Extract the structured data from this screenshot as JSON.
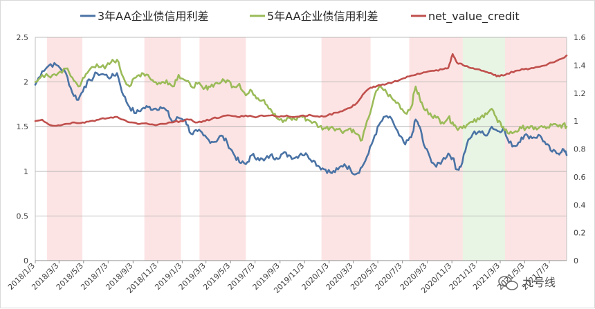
{
  "chart_data": {
    "type": "line",
    "title": "",
    "legend_position": "top",
    "x_ticks": [
      "2018/1/3",
      "2018/3/3",
      "2018/5/3",
      "2018/7/3",
      "2018/9/3",
      "2018/11/3",
      "2019/1/3",
      "2019/3/3",
      "2019/5/3",
      "2019/7/3",
      "2019/9/3",
      "2019/11/3",
      "2020/1/3",
      "2020/3/3",
      "2020/5/3",
      "2020/7/3",
      "2020/9/3",
      "2020/11/3",
      "2021/1/3",
      "2021/3/3",
      "2021/5/3",
      "2021/7/3"
    ],
    "x_range": [
      "2018/1/3",
      "2021/8/15"
    ],
    "y_left": {
      "range": [
        0,
        2.5
      ],
      "ticks": [
        "0",
        "0.5",
        "1",
        "1.5",
        "2",
        "2.5"
      ]
    },
    "y_right": {
      "range": [
        0,
        1.6
      ],
      "ticks": [
        "0",
        "0.2",
        "0.4",
        "0.6",
        "0.8",
        "1",
        "1.2",
        "1.4",
        "1.6"
      ]
    },
    "gridlines": "horizontal",
    "series": [
      {
        "name": "3年AA企业债信用利差",
        "color": "#4a73a5",
        "axis": "left",
        "points": [
          [
            "2018/1/3",
            1.97
          ],
          [
            "2018/1/20",
            2.12
          ],
          [
            "2018/2/10",
            2.2
          ],
          [
            "2018/3/1",
            2.18
          ],
          [
            "2018/3/20",
            2.1
          ],
          [
            "2018/4/5",
            1.88
          ],
          [
            "2018/4/20",
            1.8
          ],
          [
            "2018/5/5",
            1.95
          ],
          [
            "2018/5/20",
            2.02
          ],
          [
            "2018/6/5",
            2.1
          ],
          [
            "2018/6/25",
            2.08
          ],
          [
            "2018/7/10",
            2.05
          ],
          [
            "2018/7/25",
            2.1
          ],
          [
            "2018/8/10",
            1.85
          ],
          [
            "2018/8/25",
            1.72
          ],
          [
            "2018/9/10",
            1.65
          ],
          [
            "2018/9/25",
            1.7
          ],
          [
            "2018/10/10",
            1.72
          ],
          [
            "2018/10/25",
            1.7
          ],
          [
            "2018/11/10",
            1.72
          ],
          [
            "2018/11/25",
            1.68
          ],
          [
            "2018/12/10",
            1.55
          ],
          [
            "2018/12/25",
            1.6
          ],
          [
            "2019/1/10",
            1.58
          ],
          [
            "2019/1/25",
            1.42
          ],
          [
            "2019/2/10",
            1.45
          ],
          [
            "2019/2/25",
            1.4
          ],
          [
            "2019/3/10",
            1.35
          ],
          [
            "2019/3/25",
            1.33
          ],
          [
            "2019/4/10",
            1.4
          ],
          [
            "2019/4/25",
            1.32
          ],
          [
            "2019/5/10",
            1.2
          ],
          [
            "2019/5/25",
            1.1
          ],
          [
            "2019/6/10",
            1.08
          ],
          [
            "2019/6/25",
            1.18
          ],
          [
            "2019/7/10",
            1.15
          ],
          [
            "2019/7/25",
            1.12
          ],
          [
            "2019/8/10",
            1.18
          ],
          [
            "2019/8/25",
            1.15
          ],
          [
            "2019/9/10",
            1.2
          ],
          [
            "2019/9/25",
            1.18
          ],
          [
            "2019/10/10",
            1.15
          ],
          [
            "2019/10/25",
            1.2
          ],
          [
            "2019/11/10",
            1.18
          ],
          [
            "2019/11/25",
            1.12
          ],
          [
            "2019/12/10",
            1.05
          ],
          [
            "2019/12/25",
            1.02
          ],
          [
            "2020/1/10",
            0.98
          ],
          [
            "2020/1/25",
            1.02
          ],
          [
            "2020/2/10",
            1.08
          ],
          [
            "2020/2/25",
            1.02
          ],
          [
            "2020/3/10",
            0.97
          ],
          [
            "2020/3/25",
            1.05
          ],
          [
            "2020/4/10",
            1.2
          ],
          [
            "2020/4/25",
            1.4
          ],
          [
            "2020/5/10",
            1.55
          ],
          [
            "2020/5/25",
            1.62
          ],
          [
            "2020/6/10",
            1.55
          ],
          [
            "2020/6/25",
            1.4
          ],
          [
            "2020/7/10",
            1.3
          ],
          [
            "2020/7/25",
            1.38
          ],
          [
            "2020/8/5",
            1.58
          ],
          [
            "2020/8/15",
            1.5
          ],
          [
            "2020/8/25",
            1.3
          ],
          [
            "2020/9/10",
            1.15
          ],
          [
            "2020/9/25",
            1.05
          ],
          [
            "2020/10/10",
            1.12
          ],
          [
            "2020/10/25",
            1.2
          ],
          [
            "2020/11/5",
            1.15
          ],
          [
            "2020/11/15",
            1.02
          ],
          [
            "2020/11/25",
            1.05
          ],
          [
            "2020/12/10",
            1.3
          ],
          [
            "2020/12/25",
            1.42
          ],
          [
            "2021/1/10",
            1.45
          ],
          [
            "2021/1/25",
            1.4
          ],
          [
            "2021/2/10",
            1.5
          ],
          [
            "2021/2/25",
            1.45
          ],
          [
            "2021/3/10",
            1.48
          ],
          [
            "2021/3/25",
            1.32
          ],
          [
            "2021/4/10",
            1.28
          ],
          [
            "2021/4/25",
            1.38
          ],
          [
            "2021/5/10",
            1.4
          ],
          [
            "2021/5/25",
            1.38
          ],
          [
            "2021/6/10",
            1.4
          ],
          [
            "2021/6/25",
            1.3
          ],
          [
            "2021/7/10",
            1.22
          ],
          [
            "2021/7/25",
            1.2
          ],
          [
            "2021/8/5",
            1.25
          ],
          [
            "2021/8/15",
            1.18
          ]
        ]
      },
      {
        "name": "5年AA企业债信用利差",
        "color": "#9bbb59",
        "axis": "left",
        "points": [
          [
            "2018/1/3",
            2.0
          ],
          [
            "2018/1/20",
            2.08
          ],
          [
            "2018/2/10",
            2.05
          ],
          [
            "2018/3/1",
            2.1
          ],
          [
            "2018/3/20",
            2.15
          ],
          [
            "2018/4/5",
            2.05
          ],
          [
            "2018/4/20",
            1.95
          ],
          [
            "2018/5/5",
            2.05
          ],
          [
            "2018/5/20",
            2.15
          ],
          [
            "2018/6/5",
            2.2
          ],
          [
            "2018/6/25",
            2.15
          ],
          [
            "2018/7/10",
            2.22
          ],
          [
            "2018/7/25",
            2.25
          ],
          [
            "2018/8/10",
            2.05
          ],
          [
            "2018/8/25",
            1.95
          ],
          [
            "2018/9/10",
            2.05
          ],
          [
            "2018/9/25",
            2.1
          ],
          [
            "2018/10/10",
            2.08
          ],
          [
            "2018/10/25",
            2.0
          ],
          [
            "2018/11/10",
            1.98
          ],
          [
            "2018/11/25",
            2.02
          ],
          [
            "2018/12/10",
            1.95
          ],
          [
            "2018/12/25",
            2.08
          ],
          [
            "2019/1/10",
            2.02
          ],
          [
            "2019/1/25",
            1.95
          ],
          [
            "2019/2/10",
            1.98
          ],
          [
            "2019/2/25",
            1.92
          ],
          [
            "2019/3/10",
            1.95
          ],
          [
            "2019/3/25",
            1.98
          ],
          [
            "2019/4/10",
            2.0
          ],
          [
            "2019/4/25",
            2.02
          ],
          [
            "2019/5/10",
            1.95
          ],
          [
            "2019/5/25",
            1.98
          ],
          [
            "2019/6/10",
            1.85
          ],
          [
            "2019/6/25",
            1.9
          ],
          [
            "2019/7/10",
            1.82
          ],
          [
            "2019/7/25",
            1.8
          ],
          [
            "2019/8/10",
            1.7
          ],
          [
            "2019/8/25",
            1.6
          ],
          [
            "2019/9/10",
            1.55
          ],
          [
            "2019/9/25",
            1.6
          ],
          [
            "2019/10/10",
            1.58
          ],
          [
            "2019/10/25",
            1.62
          ],
          [
            "2019/11/10",
            1.58
          ],
          [
            "2019/11/25",
            1.55
          ],
          [
            "2019/12/10",
            1.5
          ],
          [
            "2019/12/25",
            1.48
          ],
          [
            "2020/1/10",
            1.5
          ],
          [
            "2020/1/25",
            1.47
          ],
          [
            "2020/2/10",
            1.45
          ],
          [
            "2020/2/25",
            1.48
          ],
          [
            "2020/3/10",
            1.42
          ],
          [
            "2020/3/25",
            1.35
          ],
          [
            "2020/4/10",
            1.6
          ],
          [
            "2020/4/25",
            1.85
          ],
          [
            "2020/5/10",
            1.95
          ],
          [
            "2020/5/25",
            1.88
          ],
          [
            "2020/6/10",
            1.8
          ],
          [
            "2020/6/25",
            1.75
          ],
          [
            "2020/7/10",
            1.65
          ],
          [
            "2020/7/25",
            1.72
          ],
          [
            "2020/8/5",
            1.95
          ],
          [
            "2020/8/15",
            1.82
          ],
          [
            "2020/8/25",
            1.7
          ],
          [
            "2020/9/10",
            1.65
          ],
          [
            "2020/9/25",
            1.6
          ],
          [
            "2020/10/10",
            1.55
          ],
          [
            "2020/10/25",
            1.6
          ],
          [
            "2020/11/5",
            1.55
          ],
          [
            "2020/11/15",
            1.48
          ],
          [
            "2020/11/25",
            1.5
          ],
          [
            "2020/12/10",
            1.52
          ],
          [
            "2020/12/25",
            1.55
          ],
          [
            "2021/1/10",
            1.58
          ],
          [
            "2021/1/25",
            1.65
          ],
          [
            "2021/2/10",
            1.7
          ],
          [
            "2021/2/25",
            1.55
          ],
          [
            "2021/3/10",
            1.5
          ],
          [
            "2021/3/25",
            1.42
          ],
          [
            "2021/4/10",
            1.45
          ],
          [
            "2021/4/25",
            1.48
          ],
          [
            "2021/5/10",
            1.5
          ],
          [
            "2021/5/25",
            1.47
          ],
          [
            "2021/6/10",
            1.5
          ],
          [
            "2021/6/25",
            1.48
          ],
          [
            "2021/7/10",
            1.52
          ],
          [
            "2021/7/25",
            1.5
          ],
          [
            "2021/8/5",
            1.52
          ],
          [
            "2021/8/15",
            1.5
          ]
        ]
      },
      {
        "name": "net_value_credit",
        "color": "#c0504d",
        "axis": "right",
        "points": [
          [
            "2018/1/3",
            1.0
          ],
          [
            "2018/1/20",
            1.01
          ],
          [
            "2018/2/10",
            0.97
          ],
          [
            "2018/3/1",
            0.97
          ],
          [
            "2018/3/20",
            0.98
          ],
          [
            "2018/4/10",
            0.99
          ],
          [
            "2018/5/1",
            0.99
          ],
          [
            "2018/5/20",
            1.0
          ],
          [
            "2018/6/10",
            1.01
          ],
          [
            "2018/6/30",
            1.02
          ],
          [
            "2018/7/20",
            1.03
          ],
          [
            "2018/8/10",
            1.01
          ],
          [
            "2018/8/30",
            0.99
          ],
          [
            "2018/9/20",
            0.98
          ],
          [
            "2018/10/10",
            0.98
          ],
          [
            "2018/10/30",
            0.97
          ],
          [
            "2018/11/20",
            0.98
          ],
          [
            "2018/12/10",
            0.99
          ],
          [
            "2018/12/30",
            1.0
          ],
          [
            "2019/1/20",
            1.01
          ],
          [
            "2019/2/10",
            0.99
          ],
          [
            "2019/3/1",
            1.0
          ],
          [
            "2019/3/20",
            1.02
          ],
          [
            "2019/4/10",
            1.03
          ],
          [
            "2019/5/1",
            1.04
          ],
          [
            "2019/5/20",
            1.03
          ],
          [
            "2019/6/10",
            1.04
          ],
          [
            "2019/6/30",
            1.03
          ],
          [
            "2019/7/20",
            1.04
          ],
          [
            "2019/8/10",
            1.04
          ],
          [
            "2019/9/1",
            1.03
          ],
          [
            "2019/9/20",
            1.04
          ],
          [
            "2019/10/10",
            1.03
          ],
          [
            "2019/10/30",
            1.04
          ],
          [
            "2019/11/20",
            1.04
          ],
          [
            "2019/12/10",
            1.03
          ],
          [
            "2019/12/30",
            1.04
          ],
          [
            "2020/1/20",
            1.06
          ],
          [
            "2020/2/10",
            1.08
          ],
          [
            "2020/2/28",
            1.1
          ],
          [
            "2020/3/15",
            1.14
          ],
          [
            "2020/3/30",
            1.2
          ],
          [
            "2020/4/15",
            1.24
          ],
          [
            "2020/4/30",
            1.25
          ],
          [
            "2020/5/20",
            1.26
          ],
          [
            "2020/6/10",
            1.28
          ],
          [
            "2020/6/30",
            1.3
          ],
          [
            "2020/7/20",
            1.32
          ],
          [
            "2020/8/10",
            1.34
          ],
          [
            "2020/8/30",
            1.35
          ],
          [
            "2020/9/20",
            1.36
          ],
          [
            "2020/10/10",
            1.37
          ],
          [
            "2020/10/25",
            1.38
          ],
          [
            "2020/11/5",
            1.48
          ],
          [
            "2020/11/15",
            1.42
          ],
          [
            "2020/12/1",
            1.4
          ],
          [
            "2020/12/20",
            1.38
          ],
          [
            "2021/1/10",
            1.37
          ],
          [
            "2021/1/30",
            1.35
          ],
          [
            "2021/2/15",
            1.33
          ],
          [
            "2021/3/1",
            1.32
          ],
          [
            "2021/3/20",
            1.34
          ],
          [
            "2021/4/10",
            1.36
          ],
          [
            "2021/5/1",
            1.37
          ],
          [
            "2021/5/20",
            1.38
          ],
          [
            "2021/6/10",
            1.39
          ],
          [
            "2021/6/30",
            1.41
          ],
          [
            "2021/7/20",
            1.43
          ],
          [
            "2021/8/5",
            1.45
          ],
          [
            "2021/8/15",
            1.47
          ]
        ]
      }
    ],
    "shaded_periods": [
      {
        "start": "2018/2/1",
        "end": "2018/4/30",
        "color": "#fde4e4"
      },
      {
        "start": "2018/10/1",
        "end": "2018/12/31",
        "color": "#fde4e4"
      },
      {
        "start": "2019/2/15",
        "end": "2019/6/10",
        "color": "#fde4e4"
      },
      {
        "start": "2019/12/15",
        "end": "2020/4/15",
        "color": "#fde4e4"
      },
      {
        "start": "2020/7/20",
        "end": "2020/11/30",
        "color": "#fde4e4"
      },
      {
        "start": "2020/11/30",
        "end": "2021/3/15",
        "color": "#e8f5e4"
      },
      {
        "start": "2021/3/15",
        "end": "2021/8/15",
        "color": "#fde4e4"
      }
    ]
  },
  "watermark": {
    "text": "九号线",
    "icon": "wechat-icon"
  }
}
